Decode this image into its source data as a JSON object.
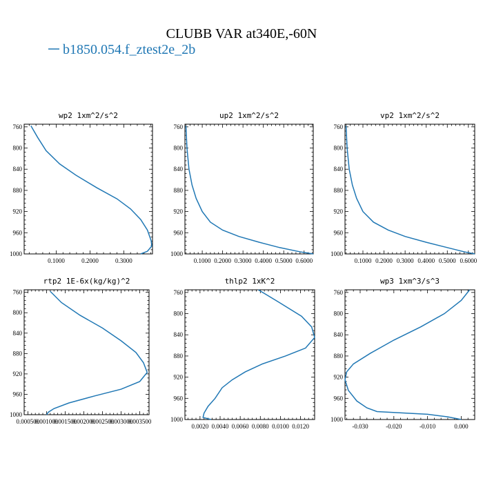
{
  "figure": {
    "title": "CLUBB VAR at340E,-60N",
    "legend": {
      "label": "b1850.054.f_ztest2e_2b",
      "color": "#1f77b4"
    }
  },
  "chart_data": [
    {
      "type": "line",
      "title": "wp2  1xm^2/s^2",
      "xlim": [
        0.005,
        0.385
      ],
      "ylim": [
        1000,
        755
      ],
      "xticks": [
        0.1,
        0.2,
        0.3
      ],
      "xtick_labels": [
        "0.1000",
        "0.2000",
        "0.3000"
      ],
      "yticks": [
        760,
        800,
        840,
        880,
        920,
        960,
        1000
      ],
      "series": [
        {
          "color": "#1f77b4",
          "x": [
            0.025,
            0.045,
            0.07,
            0.11,
            0.16,
            0.22,
            0.28,
            0.32,
            0.35,
            0.37,
            0.381,
            0.383,
            0.37,
            0.35
          ],
          "y": [
            758,
            780,
            805,
            830,
            852,
            875,
            896,
            915,
            935,
            955,
            975,
            985,
            995,
            1000
          ]
        }
      ]
    },
    {
      "type": "line",
      "title": "up2  1xm^2/s^2",
      "xlim": [
        0.015,
        0.645
      ],
      "ylim": [
        1000,
        755
      ],
      "xticks": [
        0.1,
        0.2,
        0.3,
        0.4,
        0.5,
        0.6
      ],
      "xtick_labels": [
        "0.1000",
        "0.2000",
        "0.3000",
        "0.4000",
        "0.5000",
        "0.6000"
      ],
      "yticks": [
        760,
        800,
        840,
        880,
        920,
        960,
        1000
      ],
      "series": [
        {
          "color": "#1f77b4",
          "x": [
            0.02,
            0.025,
            0.035,
            0.05,
            0.07,
            0.1,
            0.14,
            0.2,
            0.28,
            0.38,
            0.48,
            0.58,
            0.645
          ],
          "y": [
            758,
            800,
            840,
            870,
            895,
            920,
            940,
            955,
            967,
            978,
            988,
            996,
            1000
          ]
        }
      ]
    },
    {
      "type": "line",
      "title": "vp2  1xm^2/s^2",
      "xlim": [
        0.015,
        0.63
      ],
      "ylim": [
        1000,
        755
      ],
      "xticks": [
        0.1,
        0.2,
        0.3,
        0.4,
        0.5,
        0.6
      ],
      "xtick_labels": [
        "0.1000",
        "0.2000",
        "0.3000",
        "0.4000",
        "0.5000",
        "0.6000"
      ],
      "yticks": [
        760,
        800,
        840,
        880,
        920,
        960,
        1000
      ],
      "series": [
        {
          "color": "#1f77b4",
          "x": [
            0.02,
            0.025,
            0.035,
            0.05,
            0.07,
            0.1,
            0.15,
            0.22,
            0.3,
            0.4,
            0.5,
            0.58,
            0.63
          ],
          "y": [
            758,
            800,
            840,
            870,
            895,
            920,
            940,
            955,
            967,
            978,
            988,
            996,
            1000
          ]
        }
      ]
    },
    {
      "type": "line",
      "title": "rtp2  1E-6x(kg/kg)^2",
      "xlim": [
        0.0004,
        0.00375
      ],
      "ylim": [
        1000,
        755
      ],
      "xticks": [
        0.0005,
        0.001,
        0.0015,
        0.002,
        0.0025,
        0.003,
        0.0035
      ],
      "xtick_labels": [
        "0.000500",
        "0.001000",
        "0.001500",
        "0.002000",
        "0.002500",
        "0.003000",
        "0.003500"
      ],
      "yticks": [
        760,
        800,
        840,
        880,
        920,
        960,
        1000
      ],
      "series": [
        {
          "color": "#1f77b4",
          "x": [
            0.0011,
            0.0014,
            0.0019,
            0.0025,
            0.003,
            0.0034,
            0.0036,
            0.0037,
            0.0035,
            0.003,
            0.0023,
            0.0016,
            0.0012,
            0.00105,
            0.001
          ],
          "y": [
            758,
            780,
            805,
            830,
            855,
            878,
            898,
            917,
            935,
            950,
            963,
            977,
            988,
            995,
            1000
          ]
        }
      ]
    },
    {
      "type": "line",
      "title": "thlp2  1xK^2",
      "xlim": [
        0.0005,
        0.0134
      ],
      "ylim": [
        1000,
        755
      ],
      "xticks": [
        0.002,
        0.004,
        0.006,
        0.008,
        0.01,
        0.012
      ],
      "xtick_labels": [
        "0.0020",
        "0.0040",
        "0.0060",
        "0.0080",
        "0.0100",
        "0.0120"
      ],
      "yticks": [
        760,
        800,
        840,
        880,
        920,
        960,
        1000
      ],
      "series": [
        {
          "color": "#1f77b4",
          "x": [
            0.0078,
            0.0098,
            0.0121,
            0.0131,
            0.0134,
            0.0125,
            0.0105,
            0.0082,
            0.0065,
            0.0052,
            0.0042,
            0.0035,
            0.0028,
            0.0024,
            0.0023,
            0.0031
          ],
          "y": [
            755,
            778,
            805,
            825,
            845,
            865,
            880,
            895,
            910,
            925,
            940,
            960,
            975,
            988,
            996,
            1000
          ]
        }
      ]
    },
    {
      "type": "line",
      "title": "wp3  1xm^3/s^3",
      "xlim": [
        -0.0345,
        0.004
      ],
      "ylim": [
        1000,
        755
      ],
      "xticks": [
        -0.03,
        -0.02,
        -0.01,
        0.0
      ],
      "xtick_labels": [
        "-0.030",
        "-0.020",
        "-0.010",
        "0.000"
      ],
      "yticks": [
        760,
        800,
        840,
        880,
        920,
        960,
        1000
      ],
      "series": [
        {
          "color": "#1f77b4",
          "x": [
            0.0025,
            0.0,
            -0.005,
            -0.012,
            -0.02,
            -0.027,
            -0.032,
            -0.034,
            -0.0345,
            -0.0335,
            -0.031,
            -0.028,
            -0.025,
            -0.01,
            -0.004,
            0.0
          ],
          "y": [
            755,
            775,
            800,
            825,
            850,
            875,
            895,
            910,
            925,
            945,
            965,
            978,
            985,
            990,
            995,
            1000
          ]
        }
      ]
    }
  ]
}
